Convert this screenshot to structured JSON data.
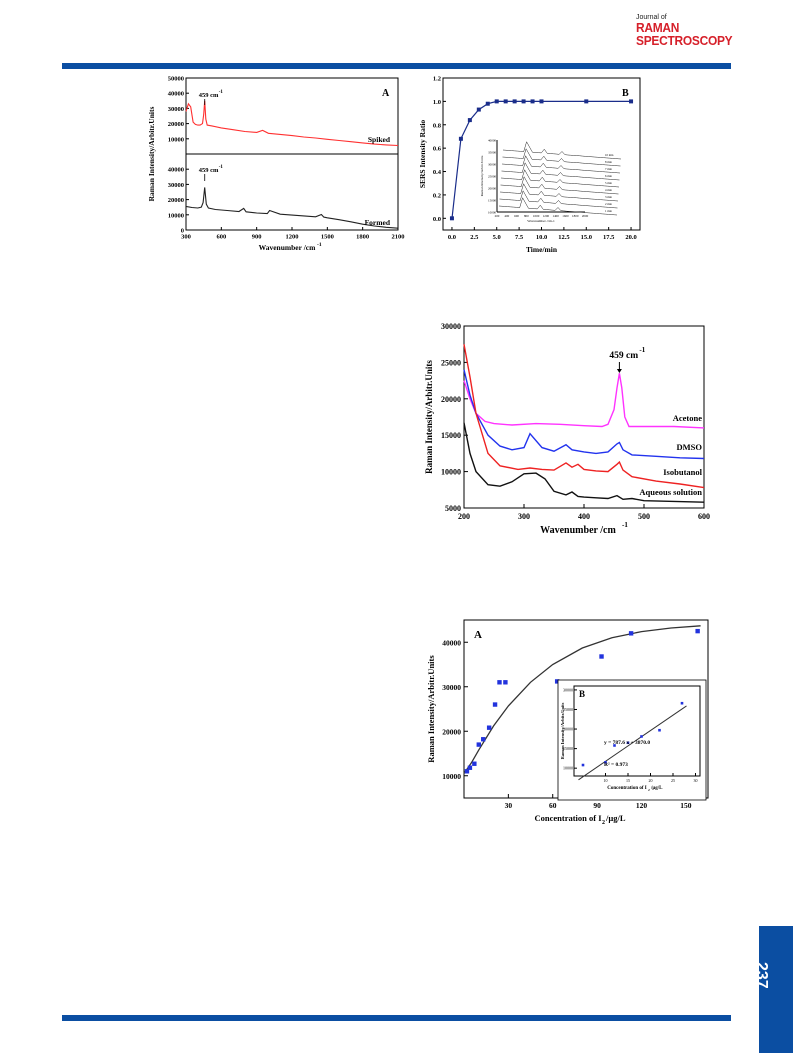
{
  "header": {
    "journal_of": "Journal of",
    "journal_line1": "RAMAN",
    "journal_line2": "SPECTROSCOPY"
  },
  "footer": {
    "page_number": "237"
  },
  "colors": {
    "brand_blue": "#0b4ea2",
    "journal_red": "#d6202a",
    "spiked": "#ff3030",
    "formed": "#222222",
    "line_blue": "#1a2d8a",
    "acetone": "#ff33ff",
    "dmso": "#2233ee",
    "isobutanol": "#ee2222",
    "aqueous": "#111111",
    "scatter": "#2233dd"
  },
  "chart_data": [
    {
      "id": "fig-a-spectra",
      "type": "line",
      "panel_label": "A",
      "ylabel": "Raman Intensity/Arbitr.Units",
      "xlabel": "Wavenumber /cm",
      "xlabel_sup": "-1",
      "xlim": [
        300,
        2100
      ],
      "x_ticks": [
        "300",
        "600",
        "900",
        "1200",
        "1500",
        "1800",
        "2100"
      ],
      "panels": [
        {
          "name": "Spiked",
          "ylim": [
            0,
            50000
          ],
          "y_ticks": [
            "50000",
            "40000",
            "30000",
            "20000",
            "10000"
          ],
          "annotation": "459 cm",
          "annotation_sup": "-1",
          "peak_x": 459,
          "x": [
            300,
            320,
            340,
            360,
            380,
            400,
            420,
            440,
            450,
            459,
            468,
            480,
            520,
            600,
            700,
            800,
            900,
            950,
            1000,
            1100,
            1200,
            1300,
            1400,
            1500,
            1600,
            1700,
            1800,
            1900,
            2000,
            2100
          ],
          "y": [
            28000,
            33000,
            31000,
            21000,
            19500,
            19000,
            19000,
            20000,
            26000,
            35000,
            23000,
            19000,
            18500,
            17200,
            16000,
            14800,
            14200,
            15500,
            13600,
            12900,
            12100,
            11200,
            10500,
            9700,
            8900,
            8100,
            7300,
            6500,
            6000,
            5600
          ]
        },
        {
          "name": "Formed",
          "ylim": [
            0,
            50000
          ],
          "y_ticks": [
            "40000",
            "30000",
            "20000",
            "10000",
            "0"
          ],
          "annotation": "459 cm",
          "annotation_sup": "-1",
          "peak_x": 459,
          "x": [
            300,
            350,
            400,
            430,
            445,
            459,
            472,
            490,
            550,
            650,
            750,
            790,
            810,
            900,
            990,
            1010,
            1100,
            1200,
            1300,
            1400,
            1450,
            1470,
            1500,
            1600,
            1700,
            1800,
            1900,
            2000,
            2100
          ],
          "y": [
            15500,
            14800,
            14500,
            15000,
            18000,
            28000,
            17000,
            14500,
            13500,
            12800,
            12200,
            14200,
            12000,
            11200,
            10800,
            12800,
            10400,
            9800,
            9300,
            8700,
            10200,
            8500,
            8000,
            6800,
            5400,
            3800,
            2600,
            1800,
            1200
          ]
        }
      ]
    },
    {
      "id": "fig-b-ratio",
      "type": "line",
      "panel_label": "B",
      "ylabel": "SERS Intensity Ratio",
      "xlabel": "Time/min",
      "xlim": [
        -1,
        21
      ],
      "ylim": [
        -0.1,
        1.2
      ],
      "x_ticks": [
        "0.0",
        "2.5",
        "5.0",
        "7.5",
        "10.0",
        "12.5",
        "15.0",
        "17.5",
        "20.0"
      ],
      "y_ticks": [
        "0.0",
        "0.2",
        "0.4",
        "0.6",
        "0.8",
        "1.0",
        "1.2"
      ],
      "x": [
        0,
        1,
        2,
        3,
        4,
        5,
        6,
        7,
        8,
        9,
        10,
        15,
        20
      ],
      "y": [
        0.0,
        0.68,
        0.84,
        0.93,
        0.98,
        1.0,
        1.0,
        1.0,
        1.0,
        1.0,
        1.0,
        1.0,
        1.0
      ],
      "inset": {
        "ylabel": "Raman Intensity/Arbitr.Units",
        "xlabel": "Wavenumber /cm-1",
        "x_ticks": [
          "200",
          "400",
          "600",
          "800",
          "1000",
          "1200",
          "1400",
          "1600",
          "1800",
          "2000"
        ],
        "y_ticks": [
          "40000",
          "35000",
          "30000",
          "25000",
          "20000",
          "15000",
          "10000"
        ],
        "labels": [
          "10 min",
          "8 min",
          "7 min",
          "6 min",
          "5 min",
          "4 min",
          "3 min",
          "2 min",
          "1 min"
        ]
      }
    },
    {
      "id": "fig-solvents",
      "type": "line",
      "ylabel": "Raman Intensity/Arbitr.Units",
      "xlabel": "Wavenumber /cm",
      "xlabel_sup": "-1",
      "xlim": [
        200,
        600
      ],
      "ylim": [
        5000,
        30000
      ],
      "x_ticks": [
        "200",
        "300",
        "400",
        "500",
        "600"
      ],
      "y_ticks": [
        "30000",
        "25000",
        "20000",
        "15000",
        "10000",
        "5000"
      ],
      "annotation": "459 cm",
      "annotation_sup": "-1",
      "series": [
        {
          "name": "Acetone",
          "color": "#ff33ff",
          "x": [
            200,
            210,
            220,
            235,
            250,
            280,
            320,
            360,
            400,
            430,
            440,
            450,
            455,
            459,
            463,
            468,
            475,
            500,
            550,
            600
          ],
          "y": [
            22500,
            20000,
            18000,
            16900,
            16600,
            16400,
            16600,
            16500,
            16300,
            16200,
            16500,
            18500,
            21500,
            23500,
            21500,
            17500,
            16200,
            16200,
            16200,
            16000
          ]
        },
        {
          "name": "DMSO",
          "color": "#2233ee",
          "x": [
            200,
            210,
            220,
            240,
            260,
            280,
            300,
            310,
            330,
            350,
            370,
            380,
            400,
            420,
            440,
            455,
            459,
            465,
            480,
            520,
            560,
            600
          ],
          "y": [
            24000,
            20500,
            18000,
            15000,
            13500,
            13000,
            13300,
            15200,
            13300,
            12800,
            13700,
            13000,
            12700,
            12500,
            12700,
            13800,
            14000,
            13000,
            12300,
            12100,
            11900,
            11800
          ]
        },
        {
          "name": "Isobutanol",
          "color": "#ee2222",
          "x": [
            200,
            210,
            220,
            240,
            260,
            290,
            310,
            330,
            350,
            370,
            380,
            390,
            400,
            420,
            440,
            455,
            459,
            465,
            480,
            520,
            560,
            600
          ],
          "y": [
            27500,
            23000,
            18000,
            12500,
            10800,
            10300,
            10500,
            10300,
            10200,
            11200,
            10600,
            11000,
            10300,
            10100,
            10000,
            11000,
            11300,
            10200,
            9300,
            8700,
            8300,
            7800
          ]
        },
        {
          "name": "Aqueous solution",
          "color": "#111111",
          "x": [
            200,
            210,
            220,
            240,
            260,
            280,
            300,
            320,
            335,
            350,
            370,
            380,
            390,
            400,
            420,
            440,
            455,
            465,
            480,
            500,
            550,
            600
          ],
          "y": [
            16700,
            12500,
            10000,
            8200,
            8000,
            8600,
            9700,
            9800,
            9000,
            7300,
            6800,
            7200,
            6600,
            6500,
            6400,
            6300,
            6700,
            6200,
            6300,
            6000,
            5900,
            5800
          ]
        }
      ]
    },
    {
      "id": "fig-concentration",
      "type": "scatter",
      "panel_label": "A",
      "ylabel": "Raman Intensity/Arbitr.Units",
      "xlabel": "Concentration of I",
      "xlabel_sub": "2",
      "xlabel_unit": " /µg/L",
      "xlim": [
        0,
        165
      ],
      "ylim": [
        5000,
        45000
      ],
      "x_ticks": [
        "30",
        "60",
        "90",
        "120",
        "150"
      ],
      "y_ticks": [
        "40000",
        "30000",
        "20000",
        "10000"
      ],
      "points_x": [
        2,
        4,
        7,
        10,
        13,
        17,
        21,
        24,
        28,
        63,
        93,
        113,
        158
      ],
      "points_y": [
        11000,
        11800,
        12700,
        17000,
        18200,
        20800,
        26000,
        31000,
        31000,
        31200,
        36800,
        42000,
        42500
      ],
      "fit_x": [
        0,
        5,
        10,
        20,
        30,
        45,
        60,
        80,
        100,
        120,
        140,
        160
      ],
      "fit_y": [
        10500,
        12900,
        15800,
        21200,
        25700,
        31000,
        35000,
        38700,
        41000,
        42400,
        43200,
        43700
      ],
      "inset": {
        "panel_label": "B",
        "ylabel": "Raman Intensity/Arbitr.Units",
        "xlabel": "Concentration of I",
        "xlabel_sub": "2",
        "xlabel_unit": " /µg/L",
        "xlim": [
          3,
          31
        ],
        "ylim": [
          8000,
          31000
        ],
        "x_ticks": [
          "10",
          "15",
          "20",
          "25",
          "30"
        ],
        "y_ticks": [
          "30000",
          "25000",
          "20000",
          "15000",
          "10000"
        ],
        "equation": "y = 787.6 x + 3870.0",
        "r_squared": "R² = 0.973",
        "points_x": [
          5,
          10,
          12,
          15,
          18,
          22,
          27
        ],
        "points_y": [
          10800,
          11500,
          15800,
          16500,
          18100,
          19700,
          26600
        ],
        "fit_x": [
          4,
          28
        ],
        "fit_y": [
          7020,
          25920
        ]
      }
    }
  ]
}
